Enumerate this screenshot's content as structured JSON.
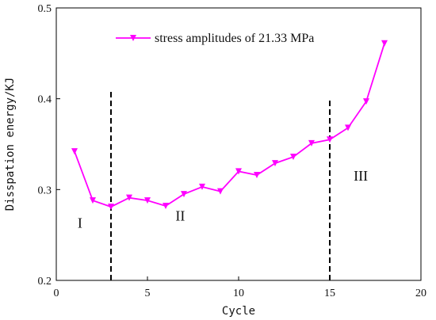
{
  "chart_data": {
    "type": "line",
    "xlabel": "Cycle",
    "ylabel": "Disspation energy/KJ",
    "xlim": [
      0,
      20
    ],
    "ylim": [
      0.2,
      0.5
    ],
    "xticks": [
      0,
      5,
      10,
      15,
      20
    ],
    "yticks": [
      0.2,
      0.3,
      0.4,
      0.5
    ],
    "legend_position": "top-center",
    "series": [
      {
        "name": "stress amplitudes of 21.33 MPa",
        "color": "#ff00ff",
        "marker": "down-triangle",
        "x": [
          1,
          2,
          3,
          4,
          5,
          6,
          7,
          8,
          9,
          10,
          11,
          12,
          13,
          14,
          15,
          16,
          17,
          18
        ],
        "y": [
          0.342,
          0.288,
          0.281,
          0.291,
          0.288,
          0.282,
          0.295,
          0.303,
          0.298,
          0.32,
          0.316,
          0.329,
          0.336,
          0.351,
          0.355,
          0.368,
          0.397,
          0.461
        ]
      }
    ],
    "dividers": [
      {
        "x": 3,
        "y_range": [
          0.2,
          0.41
        ]
      },
      {
        "x": 15,
        "y_range": [
          0.2,
          0.4
        ]
      }
    ],
    "regions": [
      {
        "label": "I",
        "x": 1.3,
        "y": 0.258
      },
      {
        "label": "II",
        "x": 6.8,
        "y": 0.266
      },
      {
        "label": "III",
        "x": 16.7,
        "y": 0.31
      }
    ]
  }
}
